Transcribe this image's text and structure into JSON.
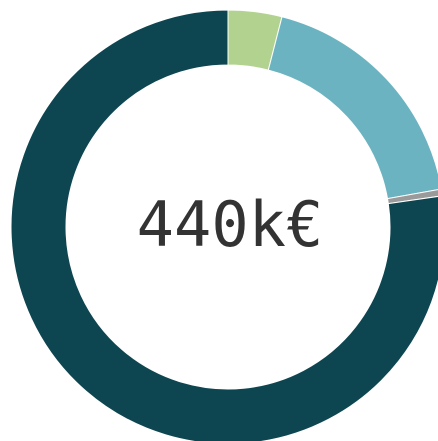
{
  "chart_data": {
    "type": "pie",
    "donut": true,
    "values": [
      4,
      18.2,
      0.5,
      77.3
    ],
    "colors": [
      "#b2d38f",
      "#6cb3c1",
      "#9a9a9a",
      "#0d4550"
    ],
    "center_label": "440k€"
  }
}
